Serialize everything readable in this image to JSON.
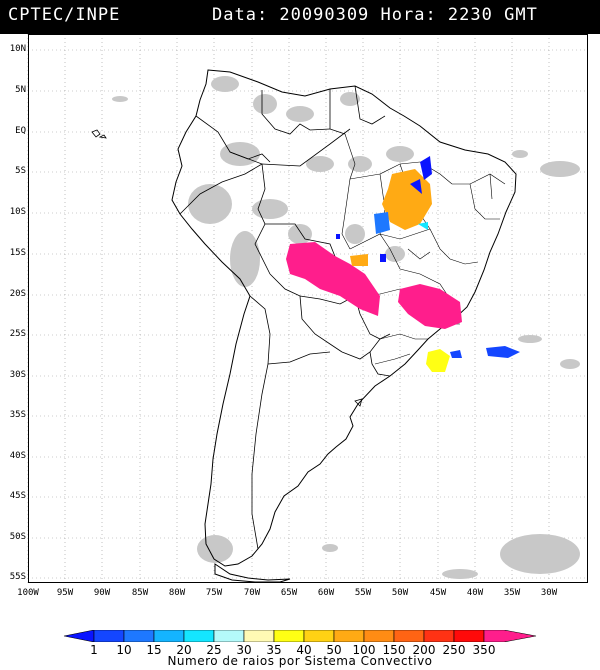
{
  "header": {
    "source": "CPTEC/INPE",
    "datetime": "Data: 20090309 Hora: 2230 GMT"
  },
  "map": {
    "lat_labels": [
      "10N",
      "5N",
      "EQ",
      "5S",
      "10S",
      "15S",
      "20S",
      "25S",
      "30S",
      "35S",
      "40S",
      "45S",
      "50S",
      "55S"
    ],
    "lon_labels": [
      "100W",
      "95W",
      "90W",
      "85W",
      "80W",
      "75W",
      "70W",
      "65W",
      "60W",
      "55W",
      "50W",
      "45W",
      "40W",
      "35W",
      "30W"
    ]
  },
  "colorbar": {
    "labels": [
      "1",
      "10",
      "15",
      "20",
      "25",
      "30",
      "35",
      "40",
      "50",
      "100",
      "150",
      "200",
      "250",
      "350"
    ],
    "colors": [
      "#0a14ff",
      "#1446ff",
      "#1e78ff",
      "#14b4ff",
      "#14e6ff",
      "#b4fafa",
      "#fffab4",
      "#ffff14",
      "#ffd214",
      "#ffaa14",
      "#ff8c14",
      "#ff6414",
      "#ff3214",
      "#ff0a0a",
      "#ff1e8c"
    ],
    "title": "Numero de raios por Sistema Convectivo"
  }
}
